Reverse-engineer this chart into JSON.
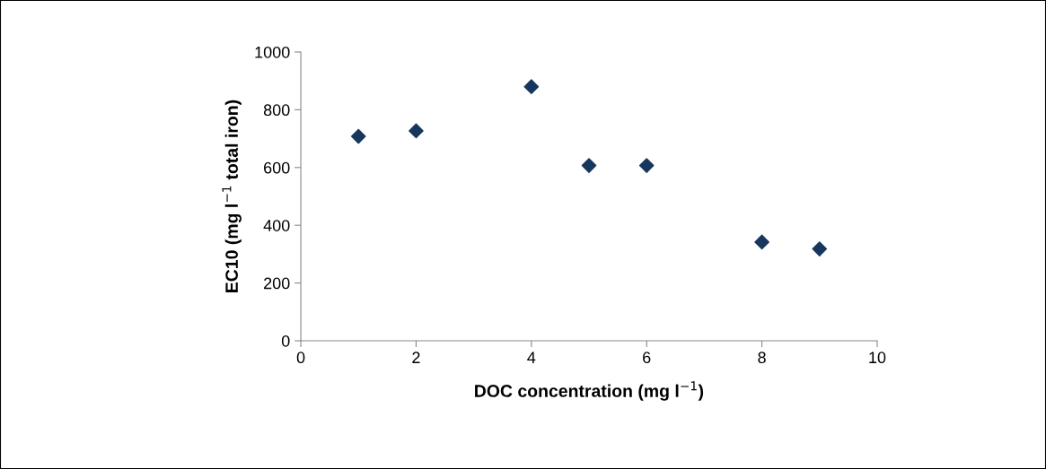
{
  "chart_data": {
    "type": "scatter",
    "xlabel": "DOC concentration (mg l$^{−1}$)",
    "ylabel": "EC10 (mg l$^{−1}$ total iron)",
    "x": [
      1,
      2,
      4,
      5,
      6,
      8,
      9
    ],
    "values": [
      708,
      727,
      880,
      607,
      607,
      342,
      318
    ],
    "color": "#17375e",
    "marker": "diamond",
    "xlim": [
      0,
      10
    ],
    "xticks": [
      0,
      2,
      4,
      6,
      8,
      10
    ],
    "ylim": [
      0,
      1000
    ],
    "yticks": [
      0,
      200,
      400,
      600,
      800,
      1000
    ],
    "grid": false
  }
}
